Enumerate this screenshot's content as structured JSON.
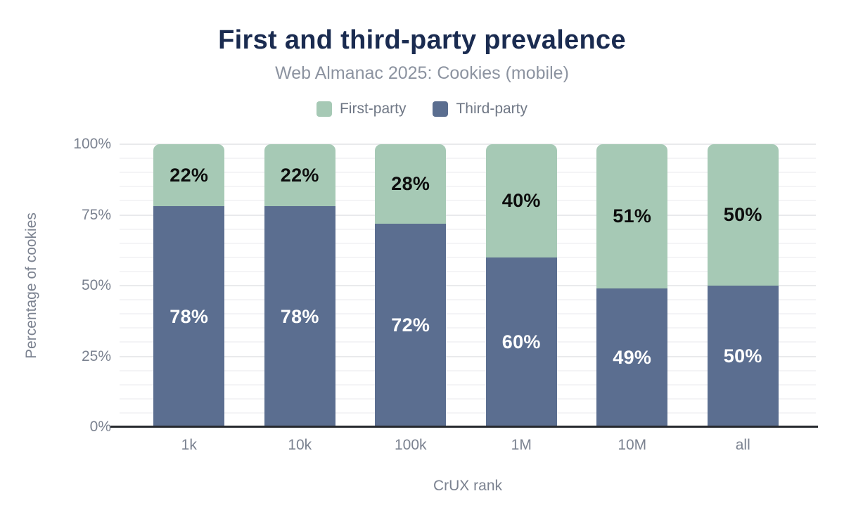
{
  "chart_data": {
    "type": "bar",
    "stacked": true,
    "title": "First and third-party prevalence",
    "subtitle": "Web Almanac 2025: Cookies (mobile)",
    "xlabel": "CrUX rank",
    "ylabel": "Percentage of cookies",
    "categories": [
      "1k",
      "10k",
      "100k",
      "1M",
      "10M",
      "all"
    ],
    "series": [
      {
        "name": "First-party",
        "color": "#a6c9b5",
        "label_color": "#0d0d0d",
        "values": [
          22,
          22,
          28,
          40,
          51,
          50
        ]
      },
      {
        "name": "Third-party",
        "color": "#5b6e90",
        "label_color": "#ffffff",
        "values": [
          78,
          78,
          72,
          60,
          49,
          50
        ]
      }
    ],
    "stack_order_top_to_bottom": [
      "First-party",
      "Third-party"
    ],
    "value_suffix": "%",
    "ylim": [
      0,
      100
    ],
    "y_major_ticks": [
      "0%",
      "25%",
      "50%",
      "75%",
      "100%"
    ],
    "y_minor_grid_step": 5,
    "grid": true,
    "legend_position": "top",
    "colors": {
      "title": "#1a2b50",
      "subtitle": "#8c93a0",
      "axis_text": "#7b8290",
      "legend_text": "#6f7785",
      "axis_line": "#26292e",
      "grid_minor": "#f4f4f6",
      "grid_major": "#e9eaec",
      "background": "#ffffff"
    }
  }
}
